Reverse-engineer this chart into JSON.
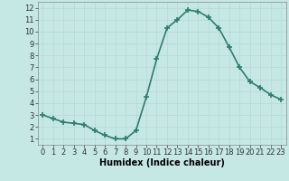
{
  "x": [
    0,
    1,
    2,
    3,
    4,
    5,
    6,
    7,
    8,
    9,
    10,
    11,
    12,
    13,
    14,
    15,
    16,
    17,
    18,
    19,
    20,
    21,
    22,
    23
  ],
  "y": [
    3.0,
    2.7,
    2.4,
    2.3,
    2.2,
    1.7,
    1.3,
    1.0,
    1.0,
    1.7,
    4.5,
    7.7,
    10.3,
    11.0,
    11.8,
    11.7,
    11.2,
    10.3,
    8.7,
    7.0,
    5.8,
    5.3,
    4.7,
    4.3
  ],
  "line_color": "#2e7d6e",
  "marker_color": "#2e7d6e",
  "background_color": "#c5e8e5",
  "grid_color": "#b8d8d4",
  "xlabel": "Humidex (Indice chaleur)",
  "xlim": [
    -0.5,
    23.5
  ],
  "ylim": [
    0.5,
    12.5
  ],
  "xticks": [
    0,
    1,
    2,
    3,
    4,
    5,
    6,
    7,
    8,
    9,
    10,
    11,
    12,
    13,
    14,
    15,
    16,
    17,
    18,
    19,
    20,
    21,
    22,
    23
  ],
  "yticks": [
    1,
    2,
    3,
    4,
    5,
    6,
    7,
    8,
    9,
    10,
    11,
    12
  ],
  "xlabel_fontsize": 7,
  "tick_fontsize": 6,
  "line_width": 1.2,
  "marker_size": 4
}
